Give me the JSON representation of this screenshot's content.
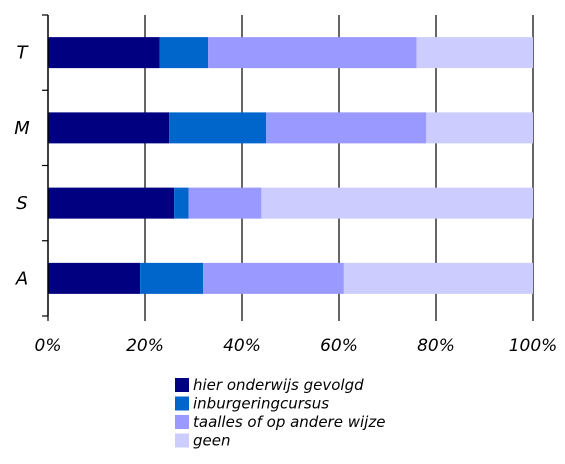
{
  "chart_data": {
    "type": "bar",
    "orientation": "horizontal",
    "stacked": "percent",
    "title": "",
    "xlabel": "",
    "ylabel": "",
    "categories": [
      "T",
      "M",
      "S",
      "A"
    ],
    "series": [
      {
        "name": "hier onderwijs gevolgd",
        "color": "#000080",
        "values": [
          23,
          25,
          26,
          19
        ]
      },
      {
        "name": "inburgeringcursus",
        "color": "#0066cc",
        "values": [
          10,
          20,
          3,
          13
        ]
      },
      {
        "name": "taalles of op andere wijze",
        "color": "#9999ff",
        "values": [
          43,
          33,
          15,
          29
        ]
      },
      {
        "name": "geen",
        "color": "#ccccff",
        "values": [
          24,
          22,
          56,
          39
        ]
      }
    ],
    "xlim": [
      0,
      100
    ],
    "xticks": [
      "0%",
      "20%",
      "40%",
      "60%",
      "80%",
      "100%"
    ],
    "grid": "vertical",
    "legend_position": "bottom"
  }
}
